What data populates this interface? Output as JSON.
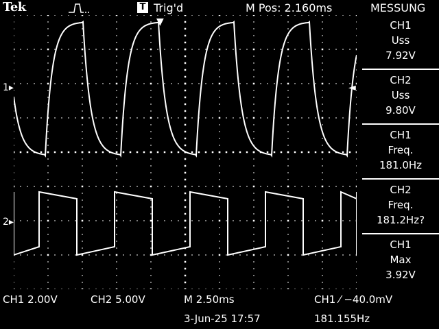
{
  "header": {
    "brand": "Tek",
    "trig_box": "T",
    "trig_status": "Trig'd",
    "m_pos": "M Pos: 2.160ms",
    "menu_title": "MESSUNG"
  },
  "measurements": [
    {
      "channel": "CH1",
      "name": "Uss",
      "value": "7.92V"
    },
    {
      "channel": "CH2",
      "name": "Uss",
      "value": "9.80V"
    },
    {
      "channel": "CH1",
      "name": "Freq.",
      "value": "181.0Hz"
    },
    {
      "channel": "CH2",
      "name": "Freq.",
      "value": "181.2Hz?"
    },
    {
      "channel": "CH1",
      "name": "Max",
      "value": "3.92V"
    }
  ],
  "channel_markers": {
    "ch1": "1",
    "ch2": "2"
  },
  "footer": {
    "ch1_scale": "CH1  2.00V",
    "ch2_scale": "CH2  5.00V",
    "timebase": "M 2.50ms",
    "trigger": "CH1 ⁄ −40.0mV",
    "date": "3-Jun-25 17:57",
    "trig_freq": "181.155Hz"
  },
  "colors": {
    "background": "#000000",
    "trace": "#ffffff",
    "grid": "#ffffff"
  }
}
